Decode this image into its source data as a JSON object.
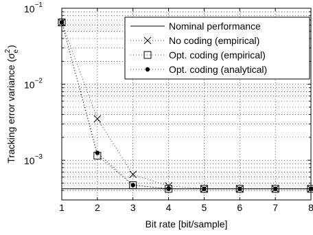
{
  "chart_data": {
    "type": "line",
    "xlabel": "Bit rate [bit/sample]",
    "ylabel": "Tracking error variance (σ²ₑ)",
    "ylabel_parts": {
      "main": "Tracking error variance (",
      "sym": "σ",
      "sup": "2",
      "sub": "e",
      "close": ")"
    },
    "xlim": [
      1,
      8
    ],
    "ylim": [
      0.0003,
      0.1
    ],
    "yscale": "log",
    "grid": true,
    "legend_position": "top-right",
    "xticks": [
      1,
      2,
      3,
      4,
      5,
      6,
      7,
      8
    ],
    "yticks": [
      {
        "value": 0.1,
        "base": "10",
        "exp": "−1"
      },
      {
        "value": 0.01,
        "base": "10",
        "exp": "−2"
      },
      {
        "value": 0.001,
        "base": "10",
        "exp": "−3"
      }
    ],
    "series": [
      {
        "name": "Nominal performance",
        "style": "solid",
        "marker": "none",
        "x": [
          1,
          8
        ],
        "y": [
          0.00042,
          0.00042
        ]
      },
      {
        "name": "No coding (empirical)",
        "style": "dotted",
        "marker": "x",
        "x": [
          1,
          2,
          3,
          4,
          5,
          6,
          7,
          8
        ],
        "y": [
          0.065,
          0.0035,
          0.00065,
          0.00046,
          0.00042,
          0.00042,
          0.00042,
          0.00042
        ]
      },
      {
        "name": "Opt. coding (empirical)",
        "style": "dotted",
        "marker": "square",
        "x": [
          1,
          2,
          3,
          4,
          5,
          6,
          7,
          8
        ],
        "y": [
          0.065,
          0.00115,
          0.00047,
          0.00042,
          0.00042,
          0.00042,
          0.00042,
          0.00042
        ]
      },
      {
        "name": "Opt. coding (analytical)",
        "style": "dotted",
        "marker": "dot",
        "x": [
          1,
          2,
          3,
          4,
          5,
          6,
          7,
          8
        ],
        "y": [
          0.065,
          0.00125,
          0.00047,
          0.00042,
          0.00042,
          0.00042,
          0.00042,
          0.00042
        ]
      }
    ]
  }
}
